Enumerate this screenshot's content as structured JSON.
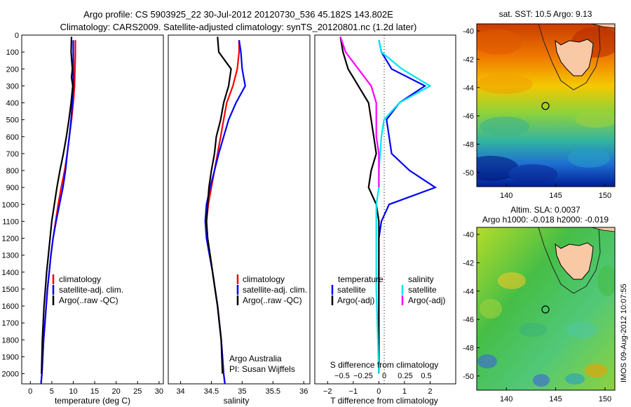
{
  "header": {
    "title_line1": "Argo profile: CS 5903925_22 30-Jul-2012 20120730_536 45.182S 143.802E",
    "title_line2": "Climatology: CARS2009. Satellite-adjusted climatology: synTS_20120801.nc (1.2d later)"
  },
  "footer": {
    "institution": "Argo Australia",
    "pi": "PI: Susan Wijffels",
    "stamp": "IMOS 09-Aug-2012 10:07:55"
  },
  "colors": {
    "climatology": "#ff0000",
    "satellite": "#0000ff",
    "argo": "#000000",
    "salinity_satellite": "#00e5ee",
    "salinity_argo": "#ff00ff",
    "land": "#f9c9a6"
  },
  "chart_data": [
    {
      "type": "line",
      "name": "temperature-profile",
      "xlabel": "temperature (deg C)",
      "ylabel": "",
      "xlim": [
        -2,
        31
      ],
      "ylim": [
        2060,
        0
      ],
      "xticks": [
        0,
        5,
        10,
        15,
        20,
        25,
        30
      ],
      "yticks": [
        0,
        100,
        200,
        300,
        400,
        500,
        600,
        700,
        800,
        900,
        1000,
        1100,
        1200,
        1300,
        1400,
        1500,
        1600,
        1700,
        1800,
        1900,
        2000
      ],
      "legend": [
        "climatology",
        "satellite-adj. clim.",
        "Argo(..raw -QC)"
      ],
      "series": [
        {
          "name": "climatology",
          "color": "#ff0000",
          "x": [
            10.5,
            10.5,
            10.4,
            10.3,
            10.0,
            9.6,
            9.1,
            8.6,
            8.0,
            7.2,
            6.5,
            5.9,
            5.3,
            4.8,
            4.4,
            4.0,
            3.7,
            3.4,
            3.1,
            2.9,
            2.7,
            2.5
          ],
          "y": [
            30,
            100,
            200,
            300,
            400,
            500,
            600,
            700,
            800,
            900,
            1000,
            1100,
            1200,
            1300,
            1400,
            1500,
            1600,
            1700,
            1800,
            1900,
            2000,
            2060
          ]
        },
        {
          "name": "satellite-adj. clim.",
          "color": "#0000ff",
          "x": [
            10.0,
            10.0,
            10.0,
            10.0,
            9.8,
            9.5,
            9.1,
            8.6,
            8.2,
            7.6,
            6.8,
            6.0,
            5.3,
            4.8,
            4.4,
            4.0,
            3.7,
            3.4,
            3.1,
            2.9,
            2.7,
            2.5
          ],
          "y": [
            30,
            100,
            200,
            300,
            400,
            500,
            600,
            700,
            800,
            900,
            1000,
            1100,
            1200,
            1300,
            1400,
            1500,
            1600,
            1700,
            1800,
            1900,
            2000,
            2060
          ]
        },
        {
          "name": "Argo(..raw -QC)",
          "color": "#000000",
          "x": [
            9.6,
            9.5,
            9.8,
            9.6,
            9.9,
            9.5,
            9.0,
            8.4,
            7.7,
            6.9,
            6.2,
            5.6,
            5.0,
            4.6,
            4.2,
            3.8,
            3.5,
            3.2,
            3.0,
            2.8,
            2.6
          ],
          "y": [
            10,
            100,
            200,
            250,
            300,
            400,
            500,
            600,
            700,
            800,
            900,
            1000,
            1100,
            1200,
            1300,
            1400,
            1500,
            1600,
            1700,
            1800,
            2000
          ]
        }
      ]
    },
    {
      "type": "line",
      "name": "salinity-profile",
      "xlabel": "salinity",
      "ylabel": "",
      "xlim": [
        33.8,
        36.1
      ],
      "ylim": [
        2060,
        0
      ],
      "xticks": [
        34,
        34.5,
        35,
        35.5,
        36
      ],
      "legend": [
        "climatology",
        "satellite-adj. clim.",
        "Argo(..raw -QC)"
      ],
      "series": [
        {
          "name": "climatology",
          "color": "#ff0000",
          "x": [
            34.95,
            34.95,
            34.92,
            34.85,
            34.75,
            34.7,
            34.65,
            34.6,
            34.55,
            34.5,
            34.45,
            34.42,
            34.43,
            34.48,
            34.52,
            34.56,
            34.6,
            34.63,
            34.66,
            34.68,
            34.7,
            34.72
          ],
          "y": [
            30,
            100,
            200,
            300,
            400,
            500,
            600,
            700,
            800,
            900,
            1000,
            1100,
            1200,
            1300,
            1400,
            1500,
            1600,
            1700,
            1800,
            1900,
            2000,
            2060
          ]
        },
        {
          "name": "satellite-adj. clim.",
          "color": "#0000ff",
          "x": [
            34.95,
            34.98,
            35.0,
            35.05,
            34.9,
            34.78,
            34.7,
            34.62,
            34.55,
            34.48,
            34.42,
            34.4,
            34.42,
            34.47,
            34.52,
            34.56,
            34.6,
            34.63,
            34.66,
            34.68,
            34.7,
            34.72
          ],
          "y": [
            30,
            100,
            200,
            300,
            400,
            500,
            600,
            700,
            800,
            900,
            1000,
            1100,
            1200,
            1300,
            1400,
            1500,
            1600,
            1700,
            1800,
            1900,
            2000,
            2060
          ]
        },
        {
          "name": "Argo(..raw -QC)",
          "color": "#000000",
          "x": [
            34.6,
            34.62,
            34.82,
            34.78,
            34.7,
            34.65,
            34.58,
            34.55,
            34.5,
            34.46,
            34.44,
            34.42,
            34.44,
            34.48,
            34.52,
            34.56,
            34.6,
            34.63,
            34.66,
            34.68
          ],
          "y": [
            10,
            100,
            200,
            300,
            400,
            500,
            600,
            700,
            800,
            900,
            1000,
            1100,
            1200,
            1300,
            1400,
            1500,
            1600,
            1700,
            1800,
            2000
          ]
        }
      ]
    },
    {
      "type": "line",
      "name": "difference-profile",
      "xlabel": "T difference from climatology",
      "x2label": "S difference from climatology",
      "xlim": [
        -2.5,
        3
      ],
      "ylim": [
        2060,
        0
      ],
      "xticks": [
        -2,
        -1,
        0,
        1,
        2
      ],
      "xtick_labels": [
        "−2",
        "−1",
        "0",
        "1",
        "2"
      ],
      "x2ticks": [
        -0.5,
        -0.25,
        0,
        0.25,
        0.5
      ],
      "x2tick_labels": [
        "−0.5",
        "−0.25",
        "0",
        "0.25",
        "0.5"
      ],
      "legend_headers": [
        "temperature",
        "salinity"
      ],
      "legend": [
        "satellite",
        "Argo(-adj)",
        "satellite",
        "Argo(-adj)"
      ],
      "series": [
        {
          "name": "satellite",
          "color": "#0000ff",
          "x": [
            0,
            0.1,
            0.5,
            1.8,
            0.8,
            0.3,
            0.4,
            0.5,
            1.2,
            2.2,
            0.4,
            0.1,
            0,
            0,
            0,
            0
          ],
          "y": [
            30,
            100,
            200,
            300,
            400,
            500,
            600,
            700,
            800,
            900,
            1000,
            1100,
            1200,
            1400,
            1600,
            2000
          ]
        },
        {
          "name": "Argo(-adj)",
          "color": "#000000",
          "x": [
            -1.5,
            -1.4,
            -1.2,
            -0.8,
            -0.4,
            -0.3,
            -0.2,
            -0.1,
            -0.3,
            -0.4,
            -0.1,
            0,
            0,
            0
          ],
          "y": [
            10,
            100,
            200,
            300,
            400,
            500,
            600,
            700,
            800,
            900,
            1000,
            1100,
            1400,
            2000
          ]
        },
        {
          "name": "satellite",
          "color": "#00e5ee",
          "x": [
            0,
            0.1,
            0.9,
            2.0,
            0.8,
            0.2,
            0.1,
            0.05,
            0,
            0,
            -0.1,
            -0.1,
            -0.1,
            0
          ],
          "y": [
            30,
            100,
            200,
            300,
            400,
            500,
            600,
            700,
            800,
            900,
            1000,
            1200,
            1500,
            2000
          ]
        },
        {
          "name": "Argo(-adj)",
          "color": "#ff00ff",
          "x": [
            -1.5,
            -1.3,
            -0.8,
            -0.3,
            -0.1,
            -0.1,
            -0.1,
            0,
            0,
            0
          ],
          "y": [
            10,
            100,
            200,
            300,
            400,
            500,
            600,
            700,
            800,
            900
          ]
        }
      ]
    },
    {
      "type": "heatmap",
      "name": "sst-map",
      "title": "sat. SST: 10.5  Argo: 9.13",
      "xlim": [
        137,
        151
      ],
      "ylim": [
        -51,
        -39.5
      ],
      "xticks": [
        140,
        145,
        150
      ],
      "yticks": [
        -40,
        -42,
        -44,
        -46,
        -48,
        -50
      ],
      "argo_position": [
        143.802,
        -45.182
      ]
    },
    {
      "type": "heatmap",
      "name": "sla-map",
      "title": "Altim. SLA: 0.0037",
      "subtitle": "Argo h1000: -0.018 h2000: -0.019",
      "xlim": [
        137,
        151
      ],
      "ylim": [
        -51,
        -39.5
      ],
      "xticks": [
        140,
        145,
        150
      ],
      "yticks": [
        -40,
        -42,
        -44,
        -46,
        -48,
        -50
      ],
      "argo_position": [
        143.802,
        -45.182
      ]
    }
  ]
}
